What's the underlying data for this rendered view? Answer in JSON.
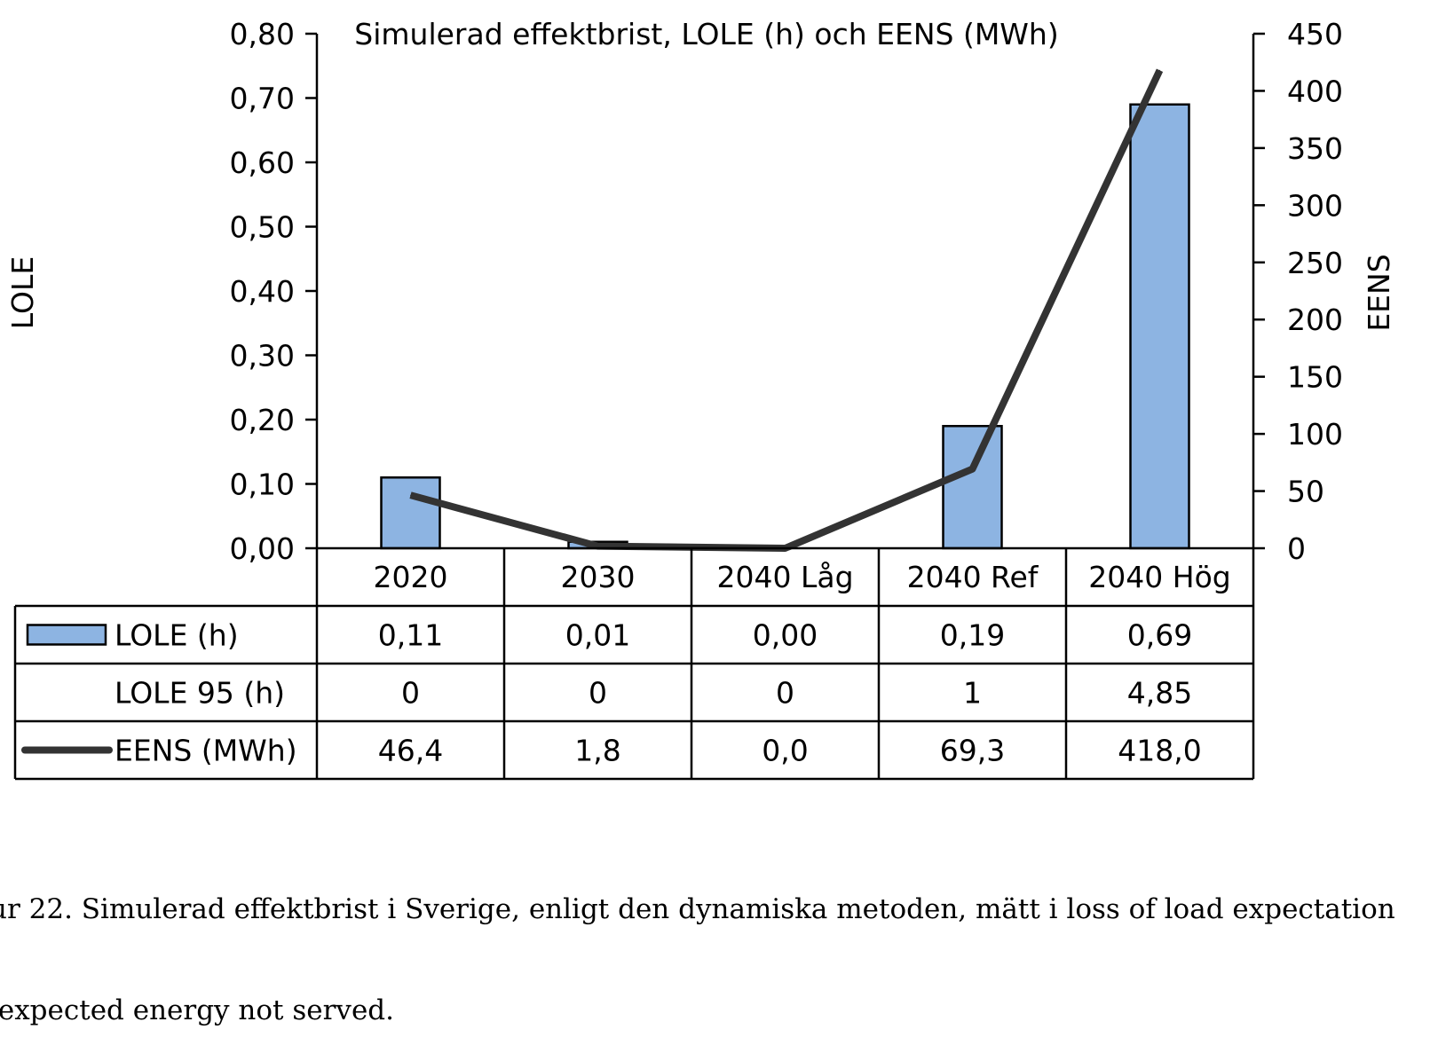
{
  "chart_data": {
    "type": "bar",
    "title": "Simulerad effektbrist, LOLE (h) och EENS (MWh)",
    "categories": [
      "2020",
      "2030",
      "2040 Låg",
      "2040 Ref",
      "2040 Hög"
    ],
    "ylabel": "LOLE",
    "y2label": "EENS",
    "ylim": [
      0,
      0.8
    ],
    "y2lim": [
      0,
      450
    ],
    "yticks": [
      "0,00",
      "0,10",
      "0,20",
      "0,30",
      "0,40",
      "0,50",
      "0,60",
      "0,70",
      "0,80"
    ],
    "y2ticks": [
      "0",
      "50",
      "100",
      "150",
      "200",
      "250",
      "300",
      "350",
      "400",
      "450"
    ],
    "series": [
      {
        "name": "LOLE (h)",
        "type": "bar",
        "axis": "left",
        "color": "#8db4e2",
        "values": [
          0.11,
          0.01,
          0.0,
          0.19,
          0.69
        ],
        "labels": [
          "0,11",
          "0,01",
          "0,00",
          "0,19",
          "0,69"
        ]
      },
      {
        "name": "LOLE 95 (h)",
        "type": "table-only",
        "values": [
          0,
          0,
          0,
          1,
          4.85
        ],
        "labels": [
          "0",
          "0",
          "0",
          "1",
          "4,85"
        ]
      },
      {
        "name": "EENS (MWh)",
        "type": "line",
        "axis": "right",
        "color": "#333333",
        "values": [
          46.4,
          1.8,
          0.0,
          69.3,
          418.0
        ],
        "labels": [
          "46,4",
          "1,8",
          "0,0",
          "69,3",
          "418,0"
        ]
      }
    ],
    "legend": "data-table"
  },
  "caption": {
    "line1": "ur 22. Simulerad effektbrist i Sverige, enligt den dynamiska metoden, mätt i loss of load expectation",
    "line2": " expected energy not served."
  }
}
